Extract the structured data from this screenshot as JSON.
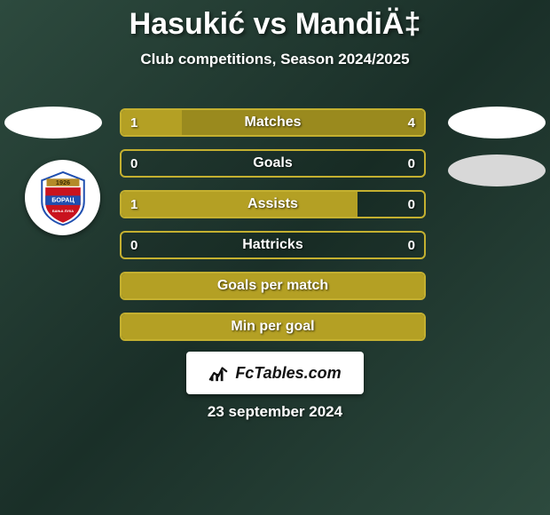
{
  "title": {
    "player_a": "Hasukić",
    "vs": "vs",
    "player_b": "MandiÄ‡"
  },
  "subtitle": "Club competitions, Season 2024/2025",
  "colors": {
    "accent": "#b4a024",
    "accent_border": "#c4b030",
    "fill_shade": "#9a8a1e",
    "text": "#ffffff"
  },
  "badge": {
    "top_text": "1926",
    "mid_text": "БОРАЦ",
    "bottom_text": "БАЊА ЛУКА",
    "shield_color": "#c9131e",
    "band_color": "#1f4fb0",
    "year_band_color": "#b48a28"
  },
  "bars": [
    {
      "label": "Matches",
      "left_val": "1",
      "right_val": "4",
      "left_pct": 20,
      "right_pct": 80,
      "filled": true,
      "show_vals": true
    },
    {
      "label": "Goals",
      "left_val": "0",
      "right_val": "0",
      "left_pct": 0,
      "right_pct": 0,
      "filled": false,
      "show_vals": true
    },
    {
      "label": "Assists",
      "left_val": "1",
      "right_val": "0",
      "left_pct": 78,
      "right_pct": 0,
      "filled": true,
      "show_vals": true
    },
    {
      "label": "Hattricks",
      "left_val": "0",
      "right_val": "0",
      "left_pct": 0,
      "right_pct": 0,
      "filled": false,
      "show_vals": true
    },
    {
      "label": "Goals per match",
      "left_val": "",
      "right_val": "",
      "left_pct": 100,
      "right_pct": 0,
      "filled": true,
      "show_vals": false
    },
    {
      "label": "Min per goal",
      "left_val": "",
      "right_val": "",
      "left_pct": 100,
      "right_pct": 0,
      "filled": true,
      "show_vals": false
    }
  ],
  "brand": "FcTables.com",
  "date": "23 september 2024"
}
